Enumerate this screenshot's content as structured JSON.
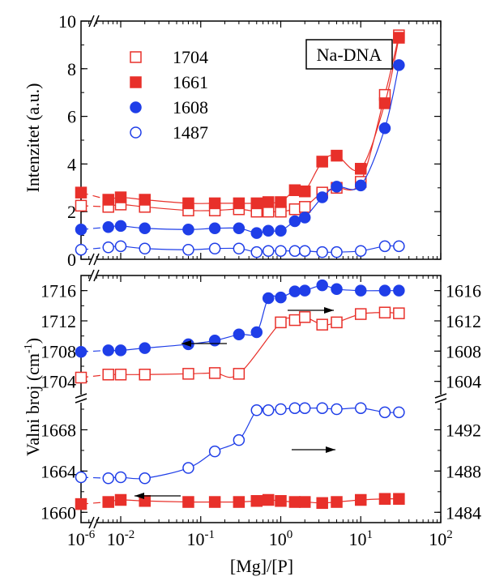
{
  "chart_data": {
    "x_axis": {
      "label": "[Mg]/[P]",
      "scale": "log",
      "range": [
        1e-06,
        100
      ],
      "ticks": [
        {
          "value": 1e-06,
          "base": "10",
          "exp": "-6"
        },
        {
          "value": 0.01,
          "base": "10",
          "exp": "-2"
        },
        {
          "value": 0.1,
          "base": "10",
          "exp": "-1"
        },
        {
          "value": 1,
          "base": "10",
          "exp": "0"
        },
        {
          "value": 10,
          "base": "10",
          "exp": "1"
        },
        {
          "value": 100,
          "base": "10",
          "exp": "2"
        }
      ]
    },
    "top": {
      "type": "scatter",
      "ylabel": "Intenzitet (a.u.)",
      "ylim": [
        0,
        10
      ],
      "yticks": [
        "0",
        "2",
        "4",
        "6",
        "8",
        "10"
      ],
      "box_label": "Na-DNA",
      "series": [
        {
          "name": "1704",
          "marker": "open-square",
          "color": "#e8302a",
          "x": [
            1e-06,
            0.007,
            0.01,
            0.02,
            0.07,
            0.15,
            0.3,
            0.5,
            0.7,
            1,
            1.5,
            2,
            3.3,
            5,
            10,
            20,
            30
          ],
          "y": [
            2.25,
            2.2,
            2.3,
            2.2,
            2.05,
            2.05,
            2.1,
            2.0,
            2.0,
            2.0,
            2.1,
            2.2,
            2.8,
            3.0,
            3.25,
            6.9,
            9.4
          ]
        },
        {
          "name": "1661",
          "marker": "filled-square",
          "color": "#e8302a",
          "x": [
            1e-06,
            0.007,
            0.01,
            0.02,
            0.07,
            0.15,
            0.3,
            0.5,
            0.7,
            1,
            1.5,
            2,
            3.3,
            5,
            10,
            20,
            30
          ],
          "y": [
            2.8,
            2.5,
            2.6,
            2.5,
            2.35,
            2.35,
            2.35,
            2.35,
            2.4,
            2.4,
            2.9,
            2.85,
            4.1,
            4.35,
            3.8,
            6.55,
            9.3
          ]
        },
        {
          "name": "1608",
          "marker": "filled-circle",
          "color": "#1f3ee8",
          "x": [
            1e-06,
            0.007,
            0.01,
            0.02,
            0.07,
            0.15,
            0.3,
            0.5,
            0.7,
            1,
            1.5,
            2,
            3.3,
            5,
            10,
            20,
            30
          ],
          "y": [
            1.25,
            1.35,
            1.4,
            1.3,
            1.25,
            1.3,
            1.3,
            1.1,
            1.2,
            1.2,
            1.6,
            1.75,
            2.6,
            3.05,
            3.1,
            5.5,
            8.15
          ]
        },
        {
          "name": "1487",
          "marker": "open-circle",
          "color": "#1f3ee8",
          "x": [
            1e-06,
            0.007,
            0.01,
            0.02,
            0.07,
            0.15,
            0.3,
            0.5,
            0.7,
            1,
            1.5,
            2,
            3.3,
            5,
            10,
            20,
            30
          ],
          "y": [
            0.4,
            0.5,
            0.55,
            0.45,
            0.4,
            0.45,
            0.45,
            0.3,
            0.35,
            0.35,
            0.35,
            0.35,
            0.3,
            0.3,
            0.35,
            0.55,
            0.55
          ]
        }
      ]
    },
    "bottom": {
      "type": "scatter",
      "ylabel": "Valni broj (cm",
      "ylabel_sup": "-1",
      "ylabel_end": ")",
      "upper": {
        "left_ylim": [
          1703,
          1718
        ],
        "right_ylim": [
          1603,
          1618
        ],
        "left_ticks": [
          "1704",
          "1708",
          "1712",
          "1716"
        ],
        "right_ticks": [
          "1604",
          "1608",
          "1612",
          "1616"
        ],
        "series": [
          {
            "name": "1704",
            "marker": "open-square",
            "color": "#e8302a",
            "axis": "left",
            "x": [
              1e-06,
              0.007,
              0.01,
              0.02,
              0.07,
              0.15,
              0.3,
              1,
              1.5,
              2,
              3.3,
              5,
              10,
              20,
              30
            ],
            "y": [
              1704.5,
              1704.9,
              1704.9,
              1704.9,
              1705.0,
              1705.1,
              1705.0,
              1711.8,
              1712.1,
              1712.5,
              1711.5,
              1711.8,
              1712.9,
              1713.1,
              1713.0
            ]
          },
          {
            "name": "1608",
            "marker": "filled-circle",
            "color": "#1f3ee8",
            "axis": "right",
            "x": [
              1e-06,
              0.007,
              0.01,
              0.02,
              0.07,
              0.15,
              0.3,
              0.5,
              0.7,
              1,
              1.5,
              2,
              3.3,
              5,
              10,
              20,
              30
            ],
            "y": [
              1607.9,
              1608.1,
              1608.1,
              1608.4,
              1608.9,
              1609.4,
              1610.2,
              1610.5,
              1615.0,
              1615.1,
              1615.9,
              1616.0,
              1616.7,
              1616.2,
              1616.0,
              1616.0,
              1616.0
            ]
          }
        ]
      },
      "lower": {
        "left_ylim": [
          1659,
          1670
        ],
        "right_ylim": [
          1483,
          1494
        ],
        "left_ticks": [
          "1660",
          "1664",
          "1668"
        ],
        "right_ticks": [
          "1484",
          "1488",
          "1492"
        ],
        "series": [
          {
            "name": "1487",
            "marker": "open-circle",
            "color": "#1f3ee8",
            "axis": "right",
            "x": [
              1e-06,
              0.007,
              0.01,
              0.02,
              0.07,
              0.15,
              0.3,
              0.5,
              0.7,
              1,
              1.5,
              2,
              3.3,
              5,
              10,
              20,
              30
            ],
            "y": [
              1487.4,
              1487.3,
              1487.4,
              1487.3,
              1488.3,
              1489.9,
              1491.0,
              1493.9,
              1493.9,
              1494.0,
              1494.1,
              1494.1,
              1494.1,
              1494.0,
              1494.1,
              1493.7,
              1493.7
            ]
          },
          {
            "name": "1661",
            "marker": "filled-square",
            "color": "#e8302a",
            "axis": "left",
            "x": [
              1e-06,
              0.007,
              0.01,
              0.02,
              0.07,
              0.15,
              0.3,
              0.5,
              0.7,
              1,
              1.5,
              2,
              3.3,
              5,
              10,
              20,
              30
            ],
            "y": [
              1660.8,
              1661.0,
              1661.2,
              1661.1,
              1661.0,
              1661.0,
              1661.0,
              1661.1,
              1661.2,
              1661.1,
              1661.0,
              1661.0,
              1660.9,
              1661.0,
              1661.2,
              1661.3,
              1661.3
            ]
          }
        ]
      }
    }
  }
}
